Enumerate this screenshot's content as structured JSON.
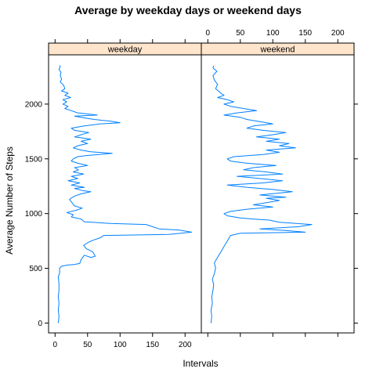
{
  "chart_data": {
    "type": "line",
    "title": "Average by weekday days or weekend days",
    "xlabel": "Intervals",
    "ylabel": "Average Number of Steps",
    "xlim": [
      -10,
      225
    ],
    "ylim": [
      -90,
      2450
    ],
    "x_ticks": [
      0,
      50,
      100,
      150,
      200
    ],
    "y_ticks": [
      0,
      500,
      1000,
      1500,
      2000
    ],
    "grid": false,
    "line_color": "#0080ff",
    "strip_color": "#ffe5cc",
    "panels": [
      {
        "name": "weekday",
        "points": [
          [
            5,
            0
          ],
          [
            6,
            60
          ],
          [
            5,
            120
          ],
          [
            6,
            180
          ],
          [
            5,
            240
          ],
          [
            6,
            300
          ],
          [
            6,
            360
          ],
          [
            5,
            420
          ],
          [
            7,
            460
          ],
          [
            7,
            500
          ],
          [
            10,
            520
          ],
          [
            20,
            530
          ],
          [
            30,
            535
          ],
          [
            38,
            545
          ],
          [
            40,
            580
          ],
          [
            45,
            620
          ],
          [
            55,
            600
          ],
          [
            62,
            610
          ],
          [
            58,
            650
          ],
          [
            48,
            680
          ],
          [
            44,
            710
          ],
          [
            52,
            740
          ],
          [
            60,
            760
          ],
          [
            70,
            780
          ],
          [
            75,
            800
          ],
          [
            175,
            810
          ],
          [
            210,
            830
          ],
          [
            190,
            850
          ],
          [
            160,
            860
          ],
          [
            150,
            880
          ],
          [
            140,
            900
          ],
          [
            85,
            910
          ],
          [
            45,
            925
          ],
          [
            40,
            950
          ],
          [
            25,
            970
          ],
          [
            28,
            990
          ],
          [
            18,
            1010
          ],
          [
            32,
            1030
          ],
          [
            42,
            1050
          ],
          [
            30,
            1070
          ],
          [
            26,
            1100
          ],
          [
            22,
            1130
          ],
          [
            30,
            1160
          ],
          [
            40,
            1180
          ],
          [
            55,
            1200
          ],
          [
            42,
            1210
          ],
          [
            30,
            1230
          ],
          [
            45,
            1240
          ],
          [
            25,
            1260
          ],
          [
            38,
            1280
          ],
          [
            20,
            1300
          ],
          [
            35,
            1320
          ],
          [
            25,
            1340
          ],
          [
            44,
            1360
          ],
          [
            28,
            1380
          ],
          [
            36,
            1400
          ],
          [
            30,
            1420
          ],
          [
            50,
            1440
          ],
          [
            35,
            1460
          ],
          [
            25,
            1480
          ],
          [
            28,
            1500
          ],
          [
            35,
            1520
          ],
          [
            48,
            1530
          ],
          [
            88,
            1550
          ],
          [
            55,
            1565
          ],
          [
            40,
            1580
          ],
          [
            28,
            1600
          ],
          [
            35,
            1620
          ],
          [
            50,
            1640
          ],
          [
            40,
            1660
          ],
          [
            55,
            1680
          ],
          [
            30,
            1700
          ],
          [
            40,
            1720
          ],
          [
            52,
            1740
          ],
          [
            30,
            1760
          ],
          [
            25,
            1780
          ],
          [
            45,
            1800
          ],
          [
            70,
            1820
          ],
          [
            100,
            1830
          ],
          [
            85,
            1845
          ],
          [
            60,
            1860
          ],
          [
            40,
            1880
          ],
          [
            30,
            1890
          ],
          [
            65,
            1900
          ],
          [
            35,
            1920
          ],
          [
            25,
            1940
          ],
          [
            15,
            1960
          ],
          [
            20,
            1980
          ],
          [
            12,
            2000
          ],
          [
            18,
            2020
          ],
          [
            12,
            2040
          ],
          [
            24,
            2060
          ],
          [
            15,
            2080
          ],
          [
            20,
            2100
          ],
          [
            10,
            2120
          ],
          [
            15,
            2140
          ],
          [
            14,
            2160
          ],
          [
            12,
            2180
          ],
          [
            8,
            2200
          ],
          [
            10,
            2230
          ],
          [
            8,
            2260
          ],
          [
            9,
            2290
          ],
          [
            6,
            2320
          ],
          [
            8,
            2340
          ],
          [
            7,
            2355
          ]
        ]
      },
      {
        "name": "weekend",
        "points": [
          [
            5,
            0
          ],
          [
            6,
            60
          ],
          [
            5,
            120
          ],
          [
            7,
            180
          ],
          [
            6,
            240
          ],
          [
            8,
            300
          ],
          [
            9,
            350
          ],
          [
            7,
            400
          ],
          [
            10,
            450
          ],
          [
            12,
            500
          ],
          [
            10,
            550
          ],
          [
            15,
            600
          ],
          [
            20,
            650
          ],
          [
            25,
            700
          ],
          [
            30,
            750
          ],
          [
            35,
            800
          ],
          [
            50,
            820
          ],
          [
            150,
            830
          ],
          [
            120,
            845
          ],
          [
            80,
            860
          ],
          [
            140,
            880
          ],
          [
            160,
            900
          ],
          [
            110,
            920
          ],
          [
            95,
            940
          ],
          [
            70,
            950
          ],
          [
            50,
            960
          ],
          [
            30,
            980
          ],
          [
            25,
            1000
          ],
          [
            35,
            1020
          ],
          [
            60,
            1040
          ],
          [
            100,
            1060
          ],
          [
            70,
            1080
          ],
          [
            90,
            1100
          ],
          [
            110,
            1120
          ],
          [
            90,
            1140
          ],
          [
            120,
            1150
          ],
          [
            80,
            1170
          ],
          [
            130,
            1200
          ],
          [
            100,
            1220
          ],
          [
            60,
            1240
          ],
          [
            30,
            1260
          ],
          [
            85,
            1280
          ],
          [
            115,
            1300
          ],
          [
            80,
            1320
          ],
          [
            45,
            1340
          ],
          [
            115,
            1360
          ],
          [
            90,
            1380
          ],
          [
            55,
            1400
          ],
          [
            70,
            1420
          ],
          [
            105,
            1440
          ],
          [
            60,
            1460
          ],
          [
            35,
            1480
          ],
          [
            30,
            1500
          ],
          [
            40,
            1520
          ],
          [
            85,
            1540
          ],
          [
            110,
            1560
          ],
          [
            90,
            1580
          ],
          [
            135,
            1600
          ],
          [
            110,
            1620
          ],
          [
            125,
            1640
          ],
          [
            90,
            1660
          ],
          [
            110,
            1680
          ],
          [
            75,
            1700
          ],
          [
            100,
            1720
          ],
          [
            120,
            1740
          ],
          [
            85,
            1760
          ],
          [
            60,
            1780
          ],
          [
            70,
            1800
          ],
          [
            100,
            1820
          ],
          [
            80,
            1840
          ],
          [
            60,
            1860
          ],
          [
            50,
            1880
          ],
          [
            25,
            1900
          ],
          [
            45,
            1920
          ],
          [
            75,
            1940
          ],
          [
            55,
            1960
          ],
          [
            35,
            1980
          ],
          [
            25,
            2000
          ],
          [
            40,
            2020
          ],
          [
            30,
            2040
          ],
          [
            15,
            2060
          ],
          [
            25,
            2080
          ],
          [
            20,
            2100
          ],
          [
            12,
            2140
          ],
          [
            15,
            2180
          ],
          [
            10,
            2220
          ],
          [
            8,
            2260
          ],
          [
            14,
            2300
          ],
          [
            8,
            2330
          ],
          [
            9,
            2350
          ]
        ]
      }
    ]
  }
}
